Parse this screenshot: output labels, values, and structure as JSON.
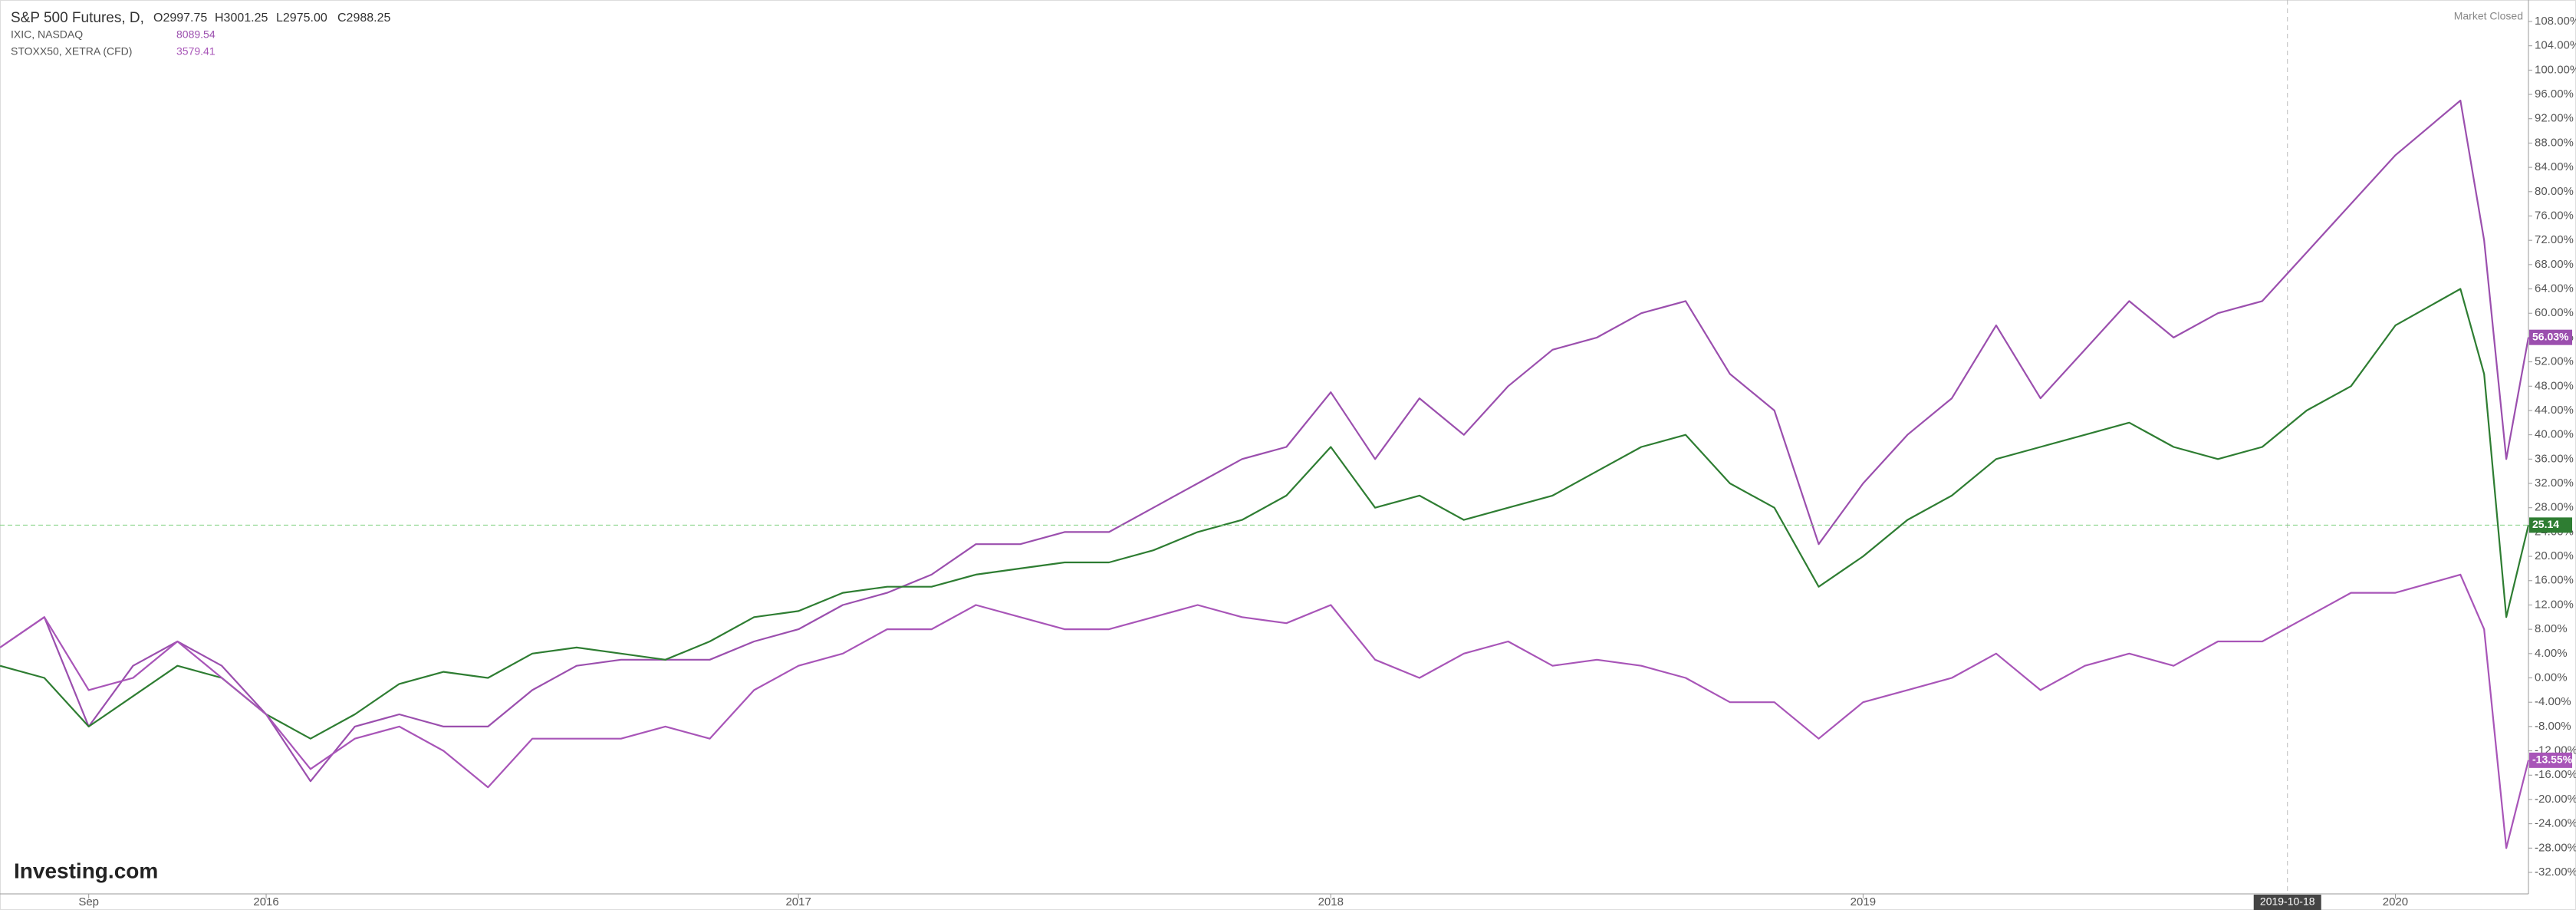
{
  "chart_data": {
    "type": "line",
    "header": {
      "title": "S&P 500 Futures, D,",
      "ohlc": [
        "O2997.75",
        "H3001.25",
        "L2975.00",
        "C2988.25"
      ],
      "status": "Market Closed",
      "logo": "Investing.com"
    },
    "x": [
      "2015-07",
      "2015-08",
      "2015-09",
      "2015-10",
      "2015-11",
      "2015-12",
      "2016-01",
      "2016-02",
      "2016-03",
      "2016-04",
      "2016-05",
      "2016-06",
      "2016-07",
      "2016-08",
      "2016-09",
      "2016-10",
      "2016-11",
      "2016-12",
      "2017-01",
      "2017-02",
      "2017-03",
      "2017-04",
      "2017-05",
      "2017-06",
      "2017-07",
      "2017-08",
      "2017-09",
      "2017-10",
      "2017-11",
      "2017-12",
      "2018-01",
      "2018-02",
      "2018-03",
      "2018-04",
      "2018-05",
      "2018-06",
      "2018-07",
      "2018-08",
      "2018-09",
      "2018-10",
      "2018-11",
      "2018-12",
      "2019-01",
      "2019-02",
      "2019-03",
      "2019-04",
      "2019-05",
      "2019-06",
      "2019-07",
      "2019-08",
      "2019-09",
      "2019-10",
      "2019-11",
      "2019-12",
      "2020-01",
      "2020-02-15",
      "2020-03-01",
      "2020-03-16",
      "2020-03-31"
    ],
    "series": [
      {
        "name": "IXIC, NASDAQ",
        "last": "8089.54",
        "color": "#9b4fae",
        "values": [
          5,
          10,
          -8,
          2,
          6,
          2,
          -6,
          -17,
          -8,
          -6,
          -8,
          -8,
          -2,
          2,
          3,
          3,
          3,
          6,
          8,
          12,
          14,
          17,
          22,
          22,
          24,
          24,
          28,
          32,
          36,
          38,
          47,
          36,
          46,
          40,
          48,
          54,
          56,
          60,
          62,
          50,
          44,
          22,
          32,
          40,
          46,
          58,
          46,
          54,
          62,
          56,
          60,
          62,
          70,
          78,
          86,
          95,
          72,
          36,
          56.03
        ],
        "value_labels": [
          null,
          null,
          null,
          null,
          null,
          null,
          null,
          null,
          null,
          null,
          null,
          null,
          null,
          null,
          null,
          null,
          null,
          null,
          null,
          null,
          null,
          null,
          null,
          null,
          null,
          null,
          null,
          null,
          null,
          null,
          null,
          null,
          null,
          null,
          null,
          null,
          null,
          null,
          null,
          null,
          null,
          null,
          null,
          null,
          null,
          null,
          null,
          null,
          null,
          null,
          null,
          null,
          null,
          null,
          null,
          null,
          null,
          null,
          "56.03%"
        ]
      },
      {
        "name": "S&P 500 Futures, D,",
        "color": "#2e7d32",
        "values": [
          2,
          0,
          -8,
          -3,
          2,
          0,
          -6,
          -10,
          -6,
          -1,
          1,
          0,
          4,
          5,
          4,
          3,
          6,
          10,
          11,
          14,
          15,
          15,
          17,
          18,
          19,
          19,
          21,
          24,
          26,
          30,
          38,
          28,
          30,
          26,
          28,
          30,
          34,
          38,
          40,
          32,
          28,
          15,
          20,
          26,
          30,
          36,
          38,
          40,
          42,
          38,
          36,
          38,
          44,
          48,
          58,
          64,
          50,
          10,
          25.14
        ]
      },
      {
        "name": "STOXX50, XETRA (CFD)",
        "last": "3579.41",
        "color": "#a855b8",
        "values": [
          5,
          10,
          -2,
          0,
          6,
          0,
          -6,
          -15,
          -10,
          -8,
          -12,
          -18,
          -10,
          -10,
          -10,
          -8,
          -10,
          -2,
          2,
          4,
          8,
          8,
          12,
          10,
          8,
          8,
          10,
          12,
          10,
          9,
          12,
          3,
          0,
          4,
          6,
          2,
          3,
          2,
          0,
          -4,
          -4,
          -10,
          -4,
          -2,
          0,
          4,
          -2,
          2,
          4,
          2,
          6,
          6,
          10,
          14,
          14,
          17,
          8,
          -28,
          -13.55
        ],
        "value_labels": [
          null,
          null,
          null,
          null,
          null,
          null,
          null,
          null,
          null,
          null,
          null,
          null,
          null,
          null,
          null,
          null,
          null,
          null,
          null,
          null,
          null,
          null,
          null,
          null,
          null,
          null,
          null,
          null,
          null,
          null,
          null,
          null,
          null,
          null,
          null,
          null,
          null,
          null,
          null,
          null,
          null,
          null,
          null,
          null,
          null,
          null,
          null,
          null,
          null,
          null,
          null,
          null,
          null,
          null,
          null,
          null,
          null,
          null,
          "-13.55%"
        ]
      }
    ],
    "xlim": [
      "2015-07",
      "2020-04"
    ],
    "xticks": [
      {
        "value": "2015-09",
        "label": "Sep"
      },
      {
        "value": "2016-01",
        "label": "2016"
      },
      {
        "value": "2017-01",
        "label": "2017"
      },
      {
        "value": "2018-01",
        "label": "2018"
      },
      {
        "value": "2019-01",
        "label": "2019"
      },
      {
        "value": "2020-01",
        "label": "2020"
      }
    ],
    "crosshair": "2019-10-18",
    "ylim": [
      -32,
      108
    ],
    "yticks": [
      {
        "value": 108,
        "label": "108.00%"
      },
      {
        "value": 104,
        "label": "104.00%"
      },
      {
        "value": 100,
        "label": "100.00%"
      },
      {
        "value": 96,
        "label": "96.00%"
      },
      {
        "value": 92,
        "label": "92.00%"
      },
      {
        "value": 88,
        "label": "88.00%"
      },
      {
        "value": 84,
        "label": "84.00%"
      },
      {
        "value": 80,
        "label": "80.00%"
      },
      {
        "value": 76,
        "label": "76.00%"
      },
      {
        "value": 72,
        "label": "72.00%"
      },
      {
        "value": 68,
        "label": "68.00%"
      },
      {
        "value": 64,
        "label": "64.00%"
      },
      {
        "value": 60,
        "label": "60.00%"
      },
      {
        "value": 56,
        "label": "56.00%"
      },
      {
        "value": 52,
        "label": "52.00%"
      },
      {
        "value": 48,
        "label": "48.00%"
      },
      {
        "value": 44,
        "label": "44.00%"
      },
      {
        "value": 40,
        "label": "40.00%"
      },
      {
        "value": 36,
        "label": "36.00%"
      },
      {
        "value": 32,
        "label": "32.00%"
      },
      {
        "value": 28,
        "label": "28.00%"
      },
      {
        "value": 24,
        "label": "24.00%"
      },
      {
        "value": 20,
        "label": "20.00%"
      },
      {
        "value": 16,
        "label": "16.00%"
      },
      {
        "value": 12,
        "label": "12.00%"
      },
      {
        "value": 8,
        "label": "8.00%"
      },
      {
        "value": 4,
        "label": "4.00%"
      },
      {
        "value": 0,
        "label": "0.00%"
      },
      {
        "value": -4,
        "label": "-4.00%"
      },
      {
        "value": -8,
        "label": "-8.00%"
      },
      {
        "value": -12,
        "label": "-12.00%"
      },
      {
        "value": -16,
        "label": "-16.00%"
      },
      {
        "value": -20,
        "label": "-20.00%"
      },
      {
        "value": -24,
        "label": "-24.00%"
      },
      {
        "value": -28,
        "label": "-28.00%"
      },
      {
        "value": -32,
        "label": "-32.00%"
      }
    ]
  }
}
